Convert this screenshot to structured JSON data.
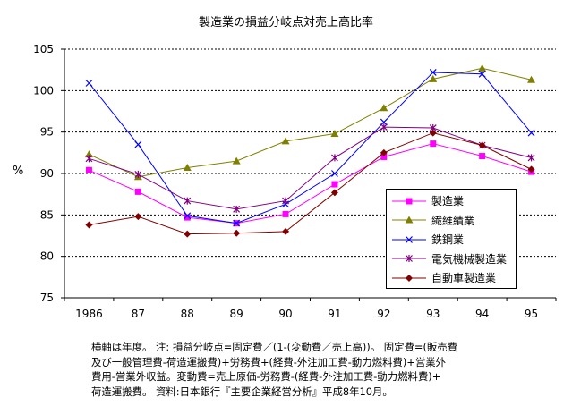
{
  "chart_data": {
    "type": "line",
    "title": "製造業の損益分岐点対売上高比率",
    "ylabel": "%",
    "xlabel": "",
    "categories": [
      "1986",
      "87",
      "88",
      "89",
      "90",
      "91",
      "92",
      "93",
      "94",
      "95"
    ],
    "ylim": [
      75,
      105
    ],
    "yticks": [
      75,
      80,
      85,
      90,
      95,
      100,
      105
    ],
    "grid": "horizontal-dotted",
    "legend_position": "right",
    "series": [
      {
        "name": "製造業",
        "color": "#ff00ff",
        "marker": "square",
        "values": [
          90.4,
          87.8,
          84.7,
          84.0,
          85.1,
          88.7,
          92.0,
          93.6,
          92.1,
          90.2
        ]
      },
      {
        "name": "繊維績業",
        "color": "#808000",
        "marker": "triangle",
        "values": [
          92.3,
          89.6,
          90.7,
          91.5,
          93.9,
          94.8,
          97.9,
          101.4,
          102.7,
          101.3
        ]
      },
      {
        "name": "鉄鋼業",
        "color": "#0000ff",
        "marker": "x",
        "values": [
          100.9,
          93.5,
          84.9,
          84.0,
          86.3,
          90.0,
          96.2,
          102.2,
          102.0,
          94.9
        ]
      },
      {
        "name": "電気機械製造業",
        "color": "#800080",
        "marker": "star",
        "values": [
          91.8,
          89.9,
          86.7,
          85.7,
          86.7,
          91.9,
          95.6,
          95.5,
          93.4,
          91.9
        ]
      },
      {
        "name": "自動車製造業",
        "color": "#800000",
        "marker": "diamond",
        "values": [
          83.8,
          84.8,
          82.7,
          82.8,
          83.0,
          87.7,
          92.5,
          94.9,
          93.4,
          90.5
        ]
      }
    ]
  },
  "footnote": "横軸は年度。 注: 損益分岐点=固定費／(1-(変動費／売上高))。 固定費=(販売費\n及び一般管理費-荷造運搬費)+労務費+(経費-外注加工費-動力燃料費)+営業外\n費用-営業外収益。変動費=売上原価-労務費-(経費-外注加工費-動力燃料費)+\n荷造運搬費。 資料:日本銀行『主要企業経営分析』平成8年10月。"
}
